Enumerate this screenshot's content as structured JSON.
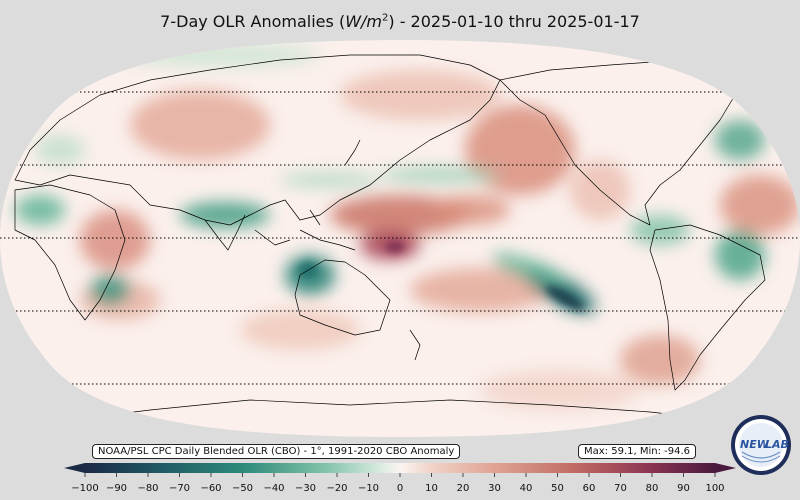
{
  "title": {
    "prefix": "7-Day OLR Anomalies (",
    "unit_base": "W/m",
    "unit_exp": "2",
    "suffix": ") - 2025-01-10 thru 2025-01-17"
  },
  "source_label": "NOAA/PSL CPC Daily Blended OLR (CBO) - 1°, 1991-2020 CBO Anomaly",
  "stats_label": "Max: 59.1,  Min: -94.6",
  "logo": {
    "text_left": "NEW",
    "text_right": "LAB",
    "icon": "noaa-psl-logo-icon"
  },
  "colorbar": {
    "min": -100,
    "max": 100,
    "ticks": [
      "−100",
      "−90",
      "−80",
      "−70",
      "−60",
      "−50",
      "−40",
      "−30",
      "−20",
      "−10",
      "0",
      "10",
      "20",
      "30",
      "40",
      "50",
      "60",
      "70",
      "80",
      "90",
      "100"
    ],
    "colors": {
      "strong_negative": "#1b2a45",
      "negative": "#2e8a7a",
      "weak_negative": "#b9d9c8",
      "neutral": "#fbf4f1",
      "weak_positive": "#e6b3a3",
      "positive": "#bf6a63",
      "strong_positive": "#4a1a3e"
    }
  },
  "map": {
    "projection": "robinson",
    "latitude_lines_dotted": true
  }
}
